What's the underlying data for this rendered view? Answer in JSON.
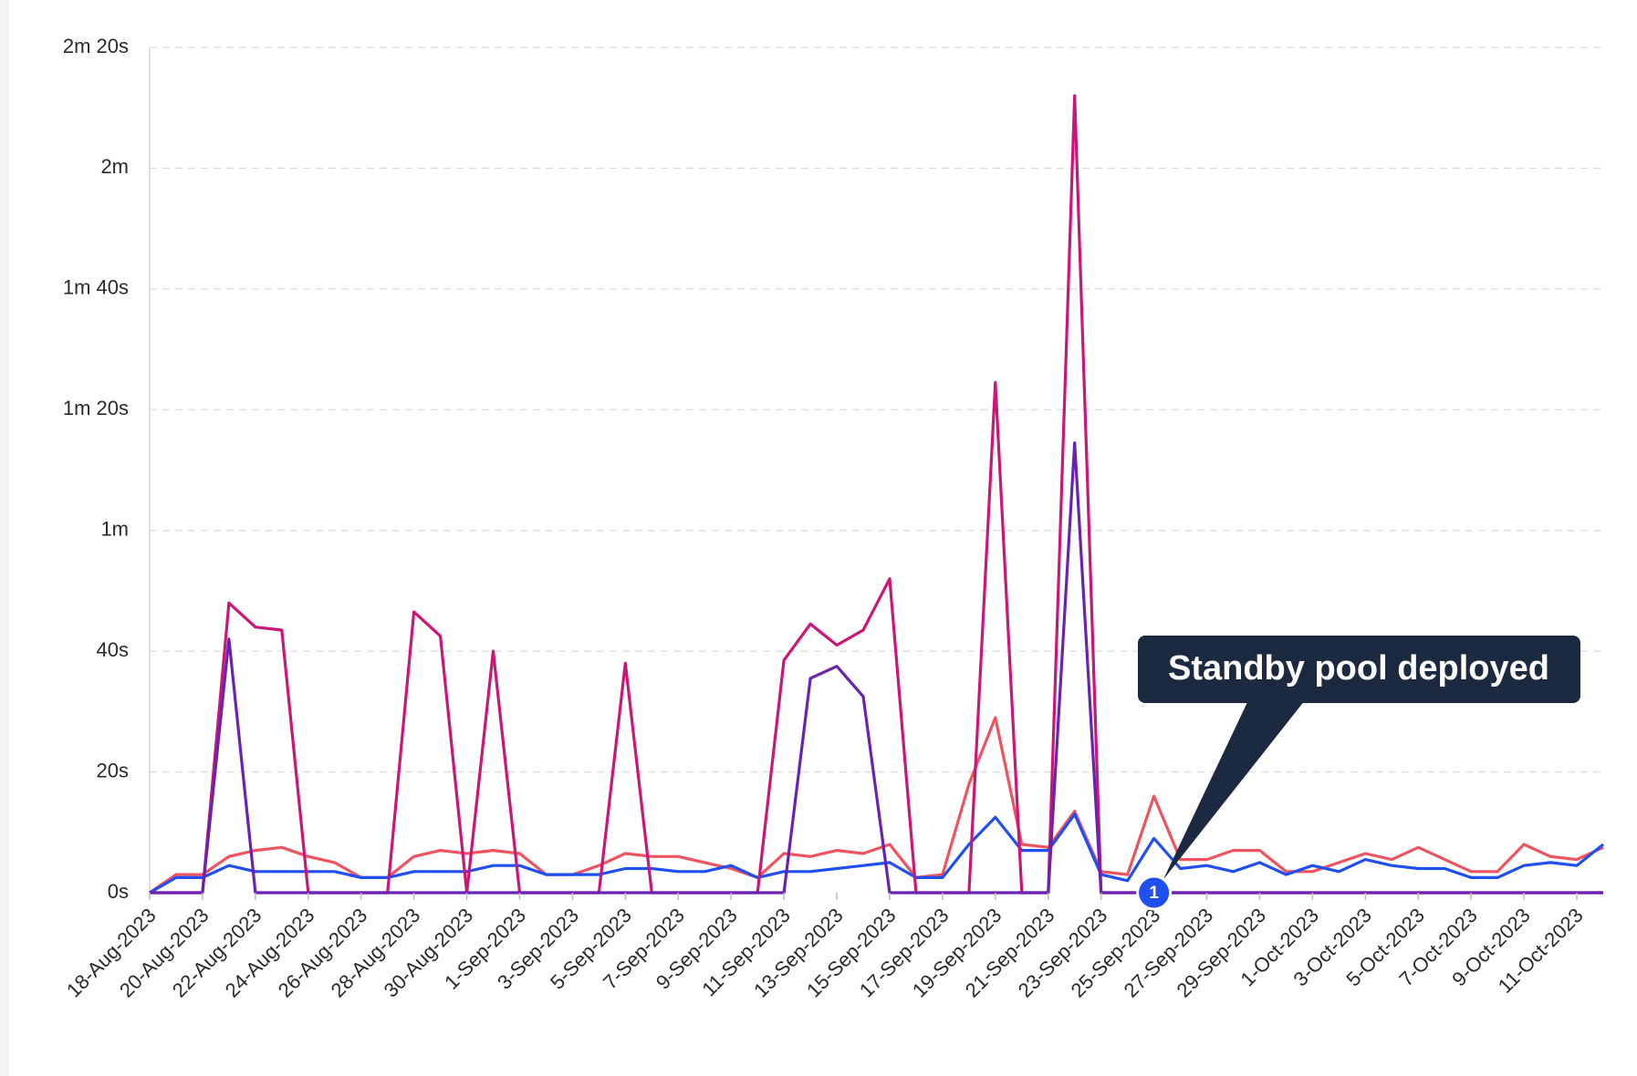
{
  "chart_data": {
    "type": "line",
    "categories": [
      "18-Aug-2023",
      null,
      "20-Aug-2023",
      null,
      "22-Aug-2023",
      null,
      "24-Aug-2023",
      null,
      "26-Aug-2023",
      null,
      "28-Aug-2023",
      null,
      "30-Aug-2023",
      null,
      "1-Sep-2023",
      null,
      "3-Sep-2023",
      null,
      "5-Sep-2023",
      null,
      "7-Sep-2023",
      null,
      "9-Sep-2023",
      null,
      "11-Sep-2023",
      null,
      "13-Sep-2023",
      null,
      "15-Sep-2023",
      null,
      "17-Sep-2023",
      null,
      "19-Sep-2023",
      null,
      "21-Sep-2023",
      null,
      "23-Sep-2023",
      null,
      "25-Sep-2023",
      null,
      "27-Sep-2023",
      null,
      "29-Sep-2023",
      null,
      "1-Oct-2023",
      null,
      "3-Oct-2023",
      null,
      "5-Oct-2023",
      null,
      "7-Oct-2023",
      null,
      "9-Oct-2023",
      null,
      "11-Oct-2023",
      null
    ],
    "series": [
      {
        "color": "#ef5360",
        "values": [
          0,
          3,
          3,
          6,
          7,
          7.5,
          6,
          5,
          2.5,
          2.5,
          6,
          7,
          6.5,
          7,
          6.5,
          3,
          3,
          4.5,
          6.5,
          6,
          6,
          5,
          4,
          2.5,
          6.5,
          6,
          7,
          6.5,
          8,
          2.5,
          3,
          18,
          29,
          8,
          7.5,
          13.5,
          3.5,
          3,
          16,
          5.5,
          5.5,
          7,
          7,
          3.5,
          3.5,
          5,
          6.5,
          5.5,
          7.5,
          5.5,
          3.5,
          3.5,
          8,
          6,
          5.5,
          7.5
        ]
      },
      {
        "color": "#1f4ff0",
        "values": [
          0,
          2.5,
          2.5,
          4.5,
          3.5,
          3.5,
          3.5,
          3.5,
          2.5,
          2.5,
          3.5,
          3.5,
          3.5,
          4.5,
          4.5,
          3,
          3,
          3,
          4,
          4,
          3.5,
          3.5,
          4.5,
          2.5,
          3.5,
          3.5,
          4,
          4.5,
          5,
          2.5,
          2.5,
          8,
          12.5,
          7,
          7,
          13,
          3,
          2,
          9,
          4,
          4.5,
          3.5,
          5,
          3,
          4.5,
          3.5,
          5.5,
          4.5,
          4,
          4,
          2.5,
          2.5,
          4.5,
          5,
          4.5,
          8
        ]
      },
      {
        "color": "#cc1677",
        "values": [
          0,
          0,
          0,
          48,
          44,
          43.5,
          0,
          0,
          0,
          0,
          46.5,
          42.5,
          0,
          40,
          0,
          0,
          0,
          0,
          38,
          0,
          0,
          0,
          0,
          0,
          38.5,
          44.5,
          41,
          43.5,
          52,
          0,
          0,
          0,
          84.5,
          0,
          0,
          132,
          0,
          0,
          0,
          0,
          0,
          0,
          0,
          0,
          0,
          0,
          0,
          0,
          0,
          0,
          0,
          0,
          0,
          0,
          0,
          0
        ]
      },
      {
        "color": "#6a22b0",
        "values": [
          0,
          0,
          0,
          42,
          0,
          0,
          0,
          0,
          0,
          0,
          0,
          0,
          0,
          0,
          0,
          0,
          0,
          0,
          0,
          0,
          0,
          0,
          0,
          0,
          0,
          35.5,
          37.5,
          32.5,
          0,
          0,
          0,
          0,
          0,
          0,
          0,
          74.5,
          0,
          0,
          0,
          0,
          0,
          0,
          0,
          0,
          0,
          0,
          0,
          0,
          0,
          0,
          0,
          0,
          0,
          0,
          0,
          0
        ]
      }
    ],
    "ylim": [
      0,
      140
    ],
    "yticks": [
      {
        "value": 0,
        "label": "0s"
      },
      {
        "value": 20,
        "label": "20s"
      },
      {
        "value": 40,
        "label": "40s"
      },
      {
        "value": 60,
        "label": "1m"
      },
      {
        "value": 80,
        "label": "1m 20s"
      },
      {
        "value": 100,
        "label": "1m 40s"
      },
      {
        "value": 120,
        "label": "2m"
      },
      {
        "value": 140,
        "label": "2m 20s"
      }
    ],
    "grid": true,
    "annotation": {
      "x": "25-Sep-2023",
      "y": 0,
      "badge": "1",
      "text": "Standby pool deployed"
    }
  }
}
